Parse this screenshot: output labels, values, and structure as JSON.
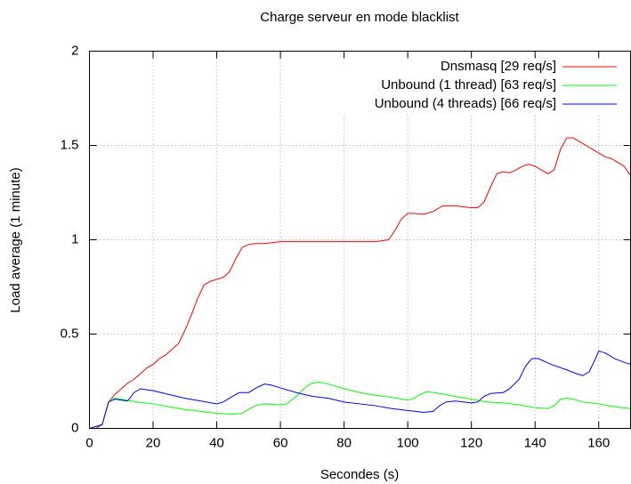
{
  "chart_data": {
    "type": "line",
    "title": "Charge serveur en mode blacklist",
    "x_label": "Secondes (s)",
    "y_label": "Load average (1 minute)",
    "xlim": [
      0,
      170
    ],
    "xticks": [
      0,
      20,
      40,
      60,
      80,
      100,
      120,
      140,
      160
    ],
    "ylim": [
      0,
      2
    ],
    "yticks": [
      0,
      0.5,
      1,
      1.5,
      2
    ],
    "grid": true,
    "legend": "top-right",
    "series": [
      {
        "name": "Dnsmasq [29 req/s]",
        "color": "#ff0000",
        "x": [
          0,
          2,
          4,
          6,
          8,
          10,
          12,
          14,
          16,
          18,
          20,
          22,
          24,
          26,
          28,
          30,
          32,
          34,
          36,
          38,
          40,
          42,
          44,
          46,
          48,
          50,
          52,
          55,
          60,
          70,
          80,
          90,
          94,
          96,
          98,
          100,
          102,
          105,
          108,
          111,
          115,
          120,
          122,
          124,
          126,
          128,
          130,
          132,
          134,
          136,
          138,
          140,
          142,
          144,
          146,
          148,
          150,
          152,
          154,
          156,
          158,
          160,
          162,
          164,
          166,
          168,
          170
        ],
        "values": [
          0,
          0,
          0.02,
          0.14,
          0.18,
          0.21,
          0.24,
          0.26,
          0.29,
          0.32,
          0.34,
          0.37,
          0.39,
          0.42,
          0.45,
          0.52,
          0.6,
          0.69,
          0.76,
          0.78,
          0.79,
          0.8,
          0.83,
          0.9,
          0.96,
          0.975,
          0.98,
          0.98,
          0.99,
          0.99,
          0.99,
          0.99,
          1.0,
          1.05,
          1.11,
          1.14,
          1.14,
          1.135,
          1.15,
          1.18,
          1.18,
          1.17,
          1.17,
          1.2,
          1.28,
          1.35,
          1.36,
          1.355,
          1.37,
          1.39,
          1.4,
          1.39,
          1.37,
          1.35,
          1.37,
          1.48,
          1.54,
          1.54,
          1.52,
          1.5,
          1.48,
          1.46,
          1.44,
          1.43,
          1.41,
          1.39,
          1.34
        ]
      },
      {
        "name": "Unbound (1 thread) [63 req/s]",
        "color": "#00ff00",
        "x": [
          0,
          4,
          6,
          8,
          10,
          15,
          20,
          25,
          30,
          35,
          40,
          45,
          48,
          50,
          52,
          55,
          60,
          62,
          65,
          68,
          70,
          72,
          75,
          80,
          85,
          90,
          95,
          100,
          102,
          104,
          106,
          110,
          115,
          120,
          125,
          130,
          135,
          140,
          144,
          146,
          148,
          150,
          152,
          155,
          160,
          165,
          170
        ],
        "values": [
          0,
          0.02,
          0.14,
          0.16,
          0.155,
          0.14,
          0.13,
          0.115,
          0.1,
          0.09,
          0.08,
          0.075,
          0.08,
          0.1,
          0.12,
          0.13,
          0.125,
          0.13,
          0.17,
          0.22,
          0.24,
          0.245,
          0.235,
          0.21,
          0.19,
          0.175,
          0.165,
          0.15,
          0.16,
          0.18,
          0.195,
          0.185,
          0.17,
          0.155,
          0.14,
          0.135,
          0.125,
          0.11,
          0.105,
          0.12,
          0.155,
          0.16,
          0.155,
          0.14,
          0.13,
          0.115,
          0.105
        ]
      },
      {
        "name": "Unbound (4 threads) [66 req/s]",
        "color": "#0000ff",
        "x": [
          0,
          4,
          6,
          8,
          10,
          12,
          14,
          16,
          20,
          25,
          30,
          35,
          40,
          42,
          45,
          47,
          50,
          53,
          55,
          57,
          60,
          65,
          70,
          75,
          80,
          85,
          90,
          95,
          100,
          105,
          108,
          110,
          112,
          115,
          120,
          122,
          124,
          126,
          130,
          132,
          135,
          137,
          139,
          141,
          145,
          150,
          153,
          155,
          157,
          159,
          160,
          162,
          165,
          168,
          170
        ],
        "values": [
          0,
          0.02,
          0.14,
          0.155,
          0.15,
          0.145,
          0.19,
          0.21,
          0.2,
          0.18,
          0.16,
          0.145,
          0.13,
          0.14,
          0.17,
          0.19,
          0.19,
          0.22,
          0.235,
          0.23,
          0.215,
          0.19,
          0.17,
          0.16,
          0.14,
          0.13,
          0.12,
          0.105,
          0.095,
          0.085,
          0.09,
          0.12,
          0.14,
          0.145,
          0.135,
          0.14,
          0.17,
          0.185,
          0.19,
          0.21,
          0.26,
          0.33,
          0.37,
          0.37,
          0.34,
          0.31,
          0.29,
          0.28,
          0.3,
          0.37,
          0.41,
          0.4,
          0.37,
          0.35,
          0.34
        ]
      }
    ]
  }
}
